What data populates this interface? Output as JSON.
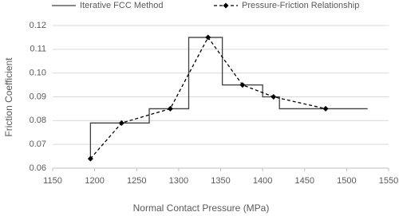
{
  "chart_data": {
    "type": "line",
    "xlabel": "Normal Contact Pressure (MPa)",
    "ylabel": "Friction Coefficient",
    "xlim": [
      1150,
      1550
    ],
    "xticks": [
      1150,
      1200,
      1250,
      1300,
      1350,
      1400,
      1450,
      1500,
      1550
    ],
    "ylim": [
      0.06,
      0.12
    ],
    "yticks": [
      0.06,
      0.07,
      0.08,
      0.09,
      {
        "value": 0.1,
        "label": "0.10"
      },
      0.11,
      0.12
    ],
    "grid": true,
    "legend": "top",
    "series": [
      {
        "name": "Iterative FCC Method",
        "color": "#404040",
        "dash": "solid",
        "marker": "none",
        "x": [
          1195,
          1195,
          1265,
          1265,
          1312,
          1312,
          1352,
          1352,
          1400,
          1400,
          1420,
          1420,
          1525
        ],
        "values": [
          0.064,
          0.079,
          0.079,
          0.085,
          0.085,
          0.115,
          0.115,
          0.095,
          0.095,
          0.09,
          0.09,
          0.085,
          0.085
        ]
      },
      {
        "name": "Pressure-Friction Relationship",
        "color": "#000000",
        "dash": "dashed",
        "marker": "diamond",
        "x": [
          1195,
          1232,
          1290,
          1335,
          1376,
          1413,
          1475
        ],
        "values": [
          0.064,
          0.079,
          0.085,
          0.115,
          0.095,
          0.09,
          0.085
        ]
      }
    ]
  }
}
